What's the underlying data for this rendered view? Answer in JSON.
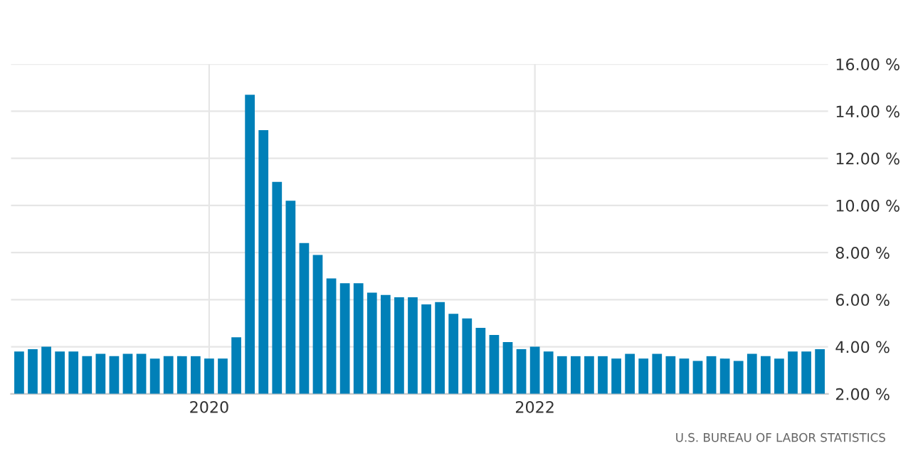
{
  "chart_data": {
    "type": "bar",
    "categories": [
      null,
      null,
      null,
      null,
      null,
      null,
      null,
      null,
      null,
      null,
      null,
      null,
      null,
      null,
      "2020",
      null,
      null,
      null,
      null,
      null,
      null,
      null,
      null,
      null,
      null,
      null,
      null,
      null,
      null,
      null,
      null,
      null,
      null,
      null,
      null,
      null,
      null,
      null,
      "2022",
      null,
      null,
      null,
      null,
      null,
      null,
      null,
      null,
      null,
      null,
      null,
      null,
      null,
      null,
      null,
      null,
      null,
      null,
      null,
      null,
      null
    ],
    "values": [
      3.8,
      3.9,
      4.0,
      3.8,
      3.8,
      3.6,
      3.7,
      3.6,
      3.7,
      3.7,
      3.5,
      3.6,
      3.6,
      3.6,
      3.5,
      3.5,
      4.4,
      14.7,
      13.2,
      11.0,
      10.2,
      8.4,
      7.9,
      6.9,
      6.7,
      6.7,
      6.3,
      6.2,
      6.1,
      6.1,
      5.8,
      5.9,
      5.4,
      5.2,
      4.8,
      4.5,
      4.2,
      3.9,
      4.0,
      3.8,
      3.6,
      3.6,
      3.6,
      3.6,
      3.5,
      3.7,
      3.5,
      3.7,
      3.6,
      3.5,
      3.4,
      3.6,
      3.5,
      3.4,
      3.7,
      3.6,
      3.5,
      3.8,
      3.8,
      3.9
    ],
    "color": "#0080b8",
    "ylim": [
      2,
      16
    ],
    "yticks": [
      {
        "value": 2,
        "label": "2.00 %"
      },
      {
        "value": 4,
        "label": "4.00 %"
      },
      {
        "value": 6,
        "label": "6.00 %"
      },
      {
        "value": 8,
        "label": "8.00 %"
      },
      {
        "value": 10,
        "label": "10.00 %"
      },
      {
        "value": 12,
        "label": "12.00 %"
      },
      {
        "value": 14,
        "label": "14.00 %"
      },
      {
        "value": 16,
        "label": "16.00 %"
      }
    ],
    "grid": true,
    "annotations": [
      "U.S. BUREAU OF LABOR STATISTICS"
    ]
  }
}
